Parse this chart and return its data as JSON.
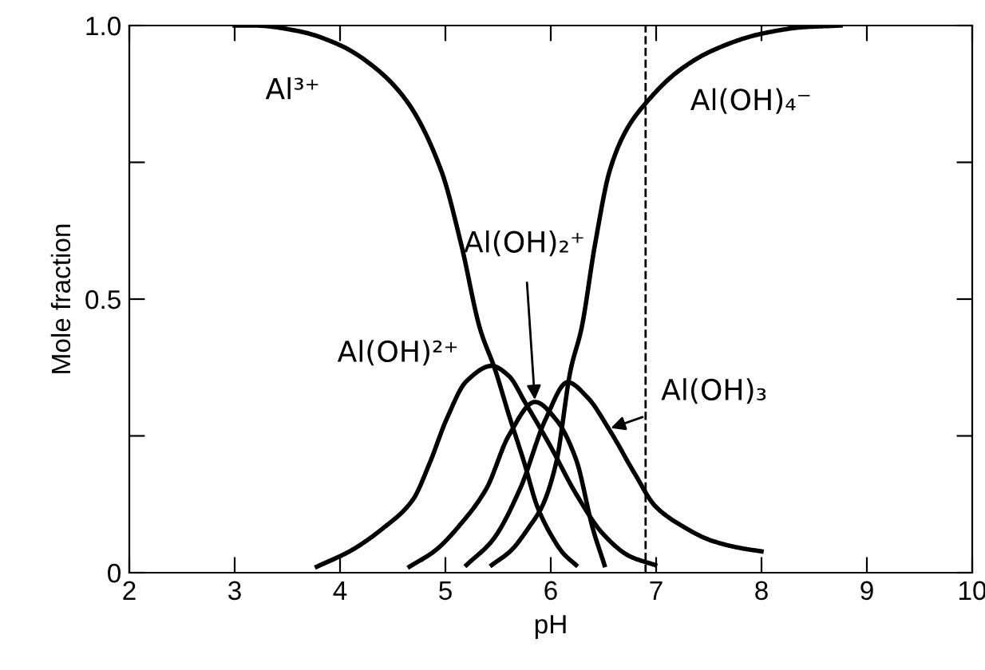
{
  "chart_data": {
    "type": "line",
    "xlabel": "pH",
    "ylabel": "Mole fraction",
    "xlim": [
      2,
      10
    ],
    "ylim": [
      0,
      1
    ],
    "xticks": [
      2,
      3,
      4,
      5,
      6,
      7,
      8,
      9,
      10
    ],
    "yticks": [
      {
        "value": 0,
        "label": "0"
      },
      {
        "value": 0.25,
        "label": null
      },
      {
        "value": 0.5,
        "label": "0.5"
      },
      {
        "value": 0.75,
        "label": null
      },
      {
        "value": 1,
        "label": "1.0"
      }
    ],
    "grid": false,
    "legend": false,
    "marker": "none",
    "line_style": "solid",
    "series": [
      {
        "name": "Al³⁺",
        "color": "#000000",
        "x": [
          3.0,
          3.19,
          3.6,
          4.0,
          4.35,
          4.64,
          4.96,
          5.15,
          5.33,
          5.47,
          5.6,
          5.75,
          5.87,
          6.0,
          6.12,
          6.24
        ],
        "values": [
          1.0,
          1.0,
          0.99,
          0.964,
          0.92,
          0.86,
          0.735,
          0.6,
          0.445,
          0.372,
          0.29,
          0.2,
          0.122,
          0.07,
          0.035,
          0.014
        ]
      },
      {
        "name": "Al(OH)²⁺",
        "color": "#000000",
        "x": [
          3.78,
          4.1,
          4.4,
          4.69,
          4.85,
          5.01,
          5.2,
          5.44,
          5.6,
          5.76,
          6.0,
          6.24,
          6.5,
          6.75,
          6.99
        ],
        "values": [
          0.011,
          0.04,
          0.08,
          0.133,
          0.2,
          0.28,
          0.35,
          0.378,
          0.36,
          0.31,
          0.23,
          0.144,
          0.07,
          0.03,
          0.014
        ]
      },
      {
        "name": "Al(OH)₂⁺",
        "color": "#000000",
        "x": [
          4.66,
          4.9,
          5.15,
          5.39,
          5.6,
          5.85,
          6.05,
          6.24,
          6.4,
          6.51
        ],
        "values": [
          0.011,
          0.04,
          0.09,
          0.154,
          0.25,
          0.312,
          0.28,
          0.207,
          0.08,
          0.014
        ]
      },
      {
        "name": "Al(OH)₃",
        "color": "#000000",
        "x": [
          5.2,
          5.45,
          5.71,
          5.95,
          6.16,
          6.35,
          6.56,
          6.8,
          6.99,
          7.25,
          7.52,
          7.8,
          8.0
        ],
        "values": [
          0.014,
          0.06,
          0.154,
          0.28,
          0.348,
          0.32,
          0.26,
          0.18,
          0.122,
          0.085,
          0.059,
          0.045,
          0.039
        ]
      },
      {
        "name": "Al(OH)₄⁻",
        "color": "#000000",
        "x": [
          5.44,
          5.62,
          5.8,
          5.92,
          6.05,
          6.19,
          6.29,
          6.42,
          6.56,
          6.72,
          6.91,
          7.2,
          7.52,
          8.0,
          8.4,
          8.75
        ],
        "values": [
          0.014,
          0.04,
          0.085,
          0.122,
          0.2,
          0.372,
          0.445,
          0.6,
          0.735,
          0.81,
          0.86,
          0.915,
          0.953,
          0.985,
          0.997,
          1.0
        ]
      }
    ],
    "ref_lines": [
      {
        "axis": "x",
        "value": 6.9,
        "color": "#000000",
        "line_style": "dashed"
      }
    ]
  }
}
